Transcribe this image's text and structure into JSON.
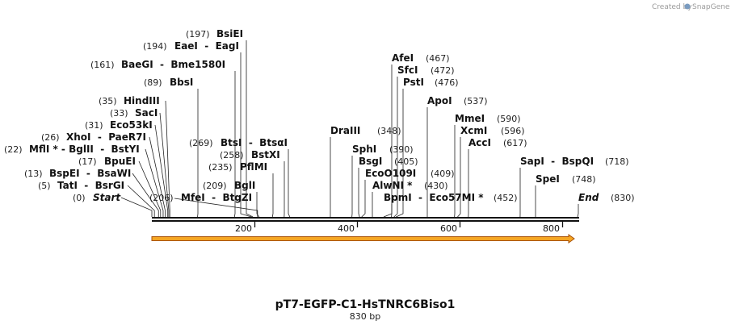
{
  "credit": {
    "prefix": "Created by",
    "brand": "SnapGene",
    "brand_color": "#7a9bc0"
  },
  "map": {
    "title": "pT7-EGFP-C1-HsTNRC6Biso1",
    "subtitle": "830 bp",
    "length": 830,
    "ticks": [
      "200",
      "400",
      "600",
      "800"
    ],
    "feature_colors": {
      "fill": "#f5a623",
      "edge": "#a8520a"
    }
  },
  "sites": [
    {
      "name": "Start",
      "pos": 0,
      "pos_label": "(0)",
      "special": true
    },
    {
      "name": "TatI  -  BsrGI",
      "pos": 5,
      "pos_label": "(5)"
    },
    {
      "name": "BspEI  -  BsaWI",
      "pos": 13,
      "pos_label": "(13)"
    },
    {
      "name": "BpuEI",
      "pos": 17,
      "pos_label": "(17)"
    },
    {
      "name": "MflI * - BglII  -  BstYI",
      "pos": 22,
      "pos_label": "(22)"
    },
    {
      "name": "XhoI  -  PaeR7I",
      "pos": 26,
      "pos_label": "(26)"
    },
    {
      "name": "Eco53kI",
      "pos": 31,
      "pos_label": "(31)"
    },
    {
      "name": "SacI",
      "pos": 33,
      "pos_label": "(33)"
    },
    {
      "name": "HindIII",
      "pos": 35,
      "pos_label": "(35)"
    },
    {
      "name": "BbsI",
      "pos": 89,
      "pos_label": "(89)"
    },
    {
      "name": "BaeGI  -  Bme1580I",
      "pos": 161,
      "pos_label": "(161)"
    },
    {
      "name": "EaeI  -  EagI",
      "pos": 194,
      "pos_label": "(194)"
    },
    {
      "name": "BsiEI",
      "pos": 197,
      "pos_label": "(197)"
    },
    {
      "name": "MfeI  -  BtgZI",
      "pos": 206,
      "pos_label": "(206)"
    },
    {
      "name": "BglI",
      "pos": 209,
      "pos_label": "(209)"
    },
    {
      "name": "PflMI",
      "pos": 235,
      "pos_label": "(235)"
    },
    {
      "name": "BstXI",
      "pos": 258,
      "pos_label": "(258)"
    },
    {
      "name": "BtsI  -  BtsαI",
      "pos": 269,
      "pos_label": "(269)"
    },
    {
      "name": "DraIII",
      "pos": 348,
      "pos_label": "(348)"
    },
    {
      "name": "SphI",
      "pos": 390,
      "pos_label": "(390)"
    },
    {
      "name": "BsgI",
      "pos": 405,
      "pos_label": "(405)"
    },
    {
      "name": "EcoO109I",
      "pos": 409,
      "pos_label": "(409)"
    },
    {
      "name": "AlwNI *",
      "pos": 430,
      "pos_label": "(430)"
    },
    {
      "name": "BpmI  -  Eco57MI *",
      "pos": 452,
      "pos_label": "(452)"
    },
    {
      "name": "AfeI",
      "pos": 467,
      "pos_label": "(467)"
    },
    {
      "name": "SfcI",
      "pos": 472,
      "pos_label": "(472)"
    },
    {
      "name": "PstI",
      "pos": 476,
      "pos_label": "(476)"
    },
    {
      "name": "ApoI",
      "pos": 537,
      "pos_label": "(537)"
    },
    {
      "name": "MmeI",
      "pos": 590,
      "pos_label": "(590)"
    },
    {
      "name": "XcmI",
      "pos": 596,
      "pos_label": "(596)"
    },
    {
      "name": "AccI",
      "pos": 617,
      "pos_label": "(617)"
    },
    {
      "name": "SapI  -  BspQI",
      "pos": 718,
      "pos_label": "(718)"
    },
    {
      "name": "SpeI",
      "pos": 748,
      "pos_label": "(748)"
    },
    {
      "name": "End",
      "pos": 830,
      "pos_label": "(830)",
      "special": true
    }
  ]
}
